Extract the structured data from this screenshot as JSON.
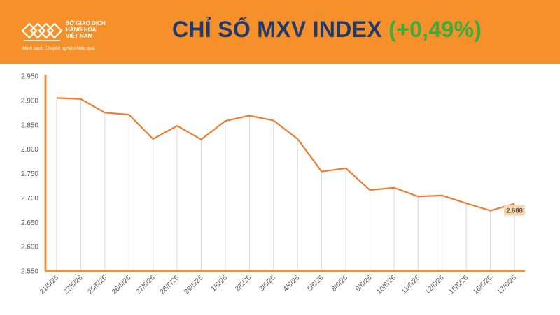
{
  "header": {
    "org_line1": "SỞ GIAO DỊCH",
    "org_line2": "HÀNG HÓA",
    "org_line3": "VIỆT NAM",
    "tagline": "Minh bạch Chuyên nghiệp Hiệu quả",
    "title": "CHỈ SỐ MXV INDEX",
    "change": "(+0,49%)"
  },
  "colors": {
    "header_bg": "#f5902a",
    "title": "#1f3a6b",
    "change": "#3cad3c",
    "line": "#ed7d31",
    "drop_lines": "#d9d9d9",
    "axis": "#f5902a",
    "label_bg": "#f8d7b0"
  },
  "chart_data": {
    "type": "line",
    "x": [
      "21/5/26",
      "22/5/26",
      "25/5/26",
      "26/5/26",
      "27/5/26",
      "28/5/26",
      "29/5/26",
      "1/6/26",
      "2/6/26",
      "3/6/26",
      "4/6/26",
      "5/6/26",
      "8/6/26",
      "9/6/26",
      "10/6/26",
      "11/6/26",
      "12/6/26",
      "15/6/26",
      "16/6/26",
      "17/6/26"
    ],
    "series": [
      {
        "values": [
          2905,
          2903,
          2875,
          2871,
          2821,
          2848,
          2820,
          2858,
          2869,
          2859,
          2821,
          2754,
          2761,
          2716,
          2721,
          2703,
          2705,
          2689,
          2674,
          2688
        ]
      }
    ],
    "yticks": [
      "2.550",
      "2.600",
      "2.650",
      "2.700",
      "2.750",
      "2.800",
      "2.850",
      "2.900",
      "2.950"
    ],
    "ylim": [
      2550,
      2950
    ],
    "last_value_label": "2.688",
    "grid": false,
    "drop_lines": true
  }
}
